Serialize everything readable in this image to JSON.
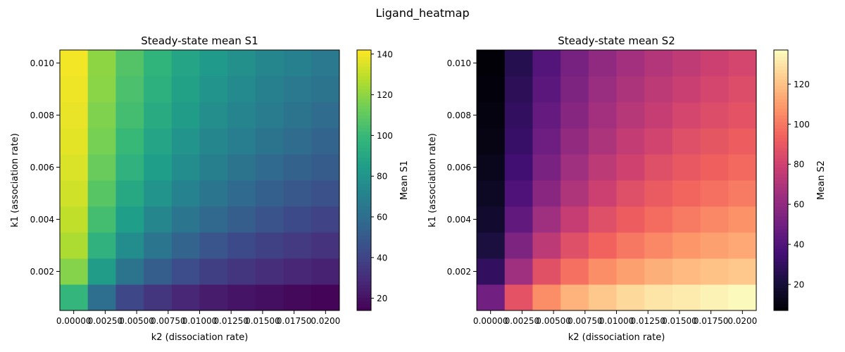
{
  "figure": {
    "suptitle": "Ligand_heatmap"
  },
  "chart_data": [
    {
      "type": "heatmap",
      "title": "Steady-state mean S1",
      "xlabel": "k2 (dissociation rate)",
      "ylabel": "k1 (association rate)",
      "colorbar_label": "Mean S1",
      "colormap": "viridis",
      "x_ticks": [
        "0.00000",
        "0.00250",
        "0.00500",
        "0.00750",
        "0.01000",
        "0.01250",
        "0.01500",
        "0.01750",
        "0.0200"
      ],
      "y_ticks": [
        "0.002",
        "0.004",
        "0.006",
        "0.008",
        "0.010"
      ],
      "colorbar_ticks": [
        "20",
        "40",
        "60",
        "80",
        "100",
        "120",
        "140"
      ],
      "xlim": [
        -0.0011,
        0.0211
      ],
      "ylim": [
        0.0005,
        0.0105
      ],
      "vmin": 14,
      "vmax": 142,
      "x": [
        0.0,
        0.00222,
        0.00444,
        0.00667,
        0.00889,
        0.01111,
        0.01333,
        0.01556,
        0.01778,
        0.02
      ],
      "y": [
        0.001,
        0.002,
        0.003,
        0.004,
        0.005,
        0.006,
        0.007,
        0.008,
        0.009,
        0.01
      ],
      "z": [
        [
          98,
          60,
          42,
          34,
          28,
          24,
          21,
          19,
          17,
          15
        ],
        [
          118,
          84,
          63,
          52,
          44,
          38,
          34,
          31,
          28,
          26
        ],
        [
          126,
          96,
          76,
          64,
          55,
          48,
          43,
          39,
          36,
          33
        ],
        [
          130,
          103,
          85,
          73,
          64,
          57,
          52,
          47,
          43,
          40
        ],
        [
          133,
          108,
          91,
          80,
          71,
          64,
          58,
          53,
          49,
          46
        ],
        [
          135,
          112,
          96,
          85,
          76,
          69,
          63,
          58,
          54,
          51
        ],
        [
          137,
          115,
          100,
          89,
          80,
          73,
          68,
          63,
          59,
          55
        ],
        [
          138,
          117,
          103,
          92,
          84,
          77,
          72,
          67,
          63,
          59
        ],
        [
          139,
          119,
          105,
          95,
          87,
          80,
          75,
          70,
          66,
          63
        ],
        [
          140,
          120,
          107,
          97,
          89,
          83,
          78,
          73,
          70,
          66
        ]
      ]
    },
    {
      "type": "heatmap",
      "title": "Steady-state mean S2",
      "xlabel": "k2 (dissociation rate)",
      "ylabel": "k1 (association rate)",
      "colorbar_label": "Mean S2",
      "colormap": "magma",
      "x_ticks": [
        "0.00000",
        "0.00250",
        "0.00500",
        "0.00750",
        "0.01000",
        "0.01250",
        "0.01500",
        "0.01750",
        "0.0200"
      ],
      "y_ticks": [
        "0.002",
        "0.004",
        "0.006",
        "0.008",
        "0.010"
      ],
      "colorbar_ticks": [
        "20",
        "40",
        "60",
        "80",
        "100",
        "120"
      ],
      "xlim": [
        -0.0011,
        0.0211
      ],
      "ylim": [
        0.0005,
        0.0105
      ],
      "vmin": 7,
      "vmax": 137,
      "x": [
        0.0,
        0.00222,
        0.00444,
        0.00667,
        0.00889,
        0.01111,
        0.01333,
        0.01556,
        0.01778,
        0.02
      ],
      "y": [
        0.001,
        0.002,
        0.003,
        0.004,
        0.005,
        0.006,
        0.007,
        0.008,
        0.009,
        0.01
      ],
      "z": [
        [
          50,
          88,
          106,
          116,
          122,
          127,
          130,
          132,
          134,
          136
        ],
        [
          30,
          65,
          87,
          98,
          106,
          111,
          115,
          118,
          120,
          122
        ],
        [
          22,
          54,
          74,
          86,
          94,
          100,
          104,
          108,
          111,
          113
        ],
        [
          18,
          45,
          65,
          77,
          86,
          92,
          97,
          101,
          104,
          107
        ],
        [
          15,
          39,
          58,
          70,
          79,
          86,
          91,
          95,
          98,
          101
        ],
        [
          13,
          35,
          53,
          65,
          74,
          80,
          86,
          90,
          93,
          96
        ],
        [
          11,
          32,
          49,
          61,
          69,
          76,
          81,
          86,
          89,
          92
        ],
        [
          10,
          30,
          46,
          57,
          66,
          72,
          77,
          82,
          85,
          88
        ],
        [
          9,
          28,
          43,
          54,
          63,
          69,
          74,
          78,
          82,
          85
        ],
        [
          8,
          26,
          41,
          52,
          60,
          66,
          71,
          75,
          79,
          82
        ]
      ]
    }
  ]
}
